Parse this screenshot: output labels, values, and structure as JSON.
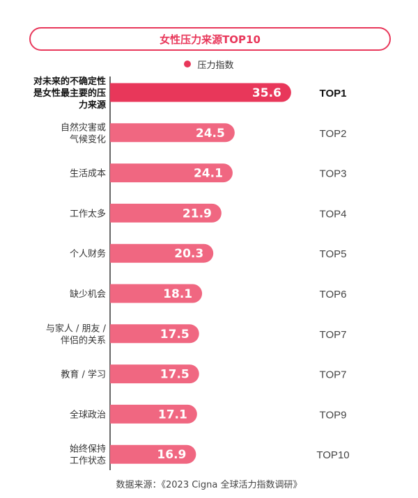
{
  "chart_data": {
    "type": "bar",
    "orientation": "horizontal",
    "title": "女性压力来源TOP10",
    "legend": "压力指数",
    "series": [
      {
        "name": "压力指数",
        "color": "#e8375a"
      }
    ],
    "categories": [
      [
        "对未来的不确定性",
        "是女性最主要的压",
        "力来源"
      ],
      [
        "自然灾害或",
        "气候变化"
      ],
      [
        "生活成本"
      ],
      [
        "工作太多"
      ],
      [
        "个人财务"
      ],
      [
        "缺少机会"
      ],
      [
        "与家人 / 朋友 /",
        "伴侣的关系"
      ],
      [
        "教育 / 学习"
      ],
      [
        "全球政治"
      ],
      [
        "始终保持",
        "工作状态"
      ]
    ],
    "values": [
      35.6,
      24.5,
      24.1,
      21.9,
      20.3,
      18.1,
      17.5,
      17.5,
      17.1,
      16.9
    ],
    "ranks": [
      "TOP1",
      "TOP2",
      "TOP3",
      "TOP4",
      "TOP5",
      "TOP6",
      "TOP7",
      "TOP7",
      "TOP9",
      "TOP10"
    ],
    "highlight_index": 0,
    "xlim": [
      0,
      40
    ]
  },
  "colors": {
    "accent": "#e8375a",
    "bar": "#f06781",
    "bar_highlight": "#e8375a"
  },
  "source": "数据来源：《2023 Cigna 全球活力指数调研》"
}
